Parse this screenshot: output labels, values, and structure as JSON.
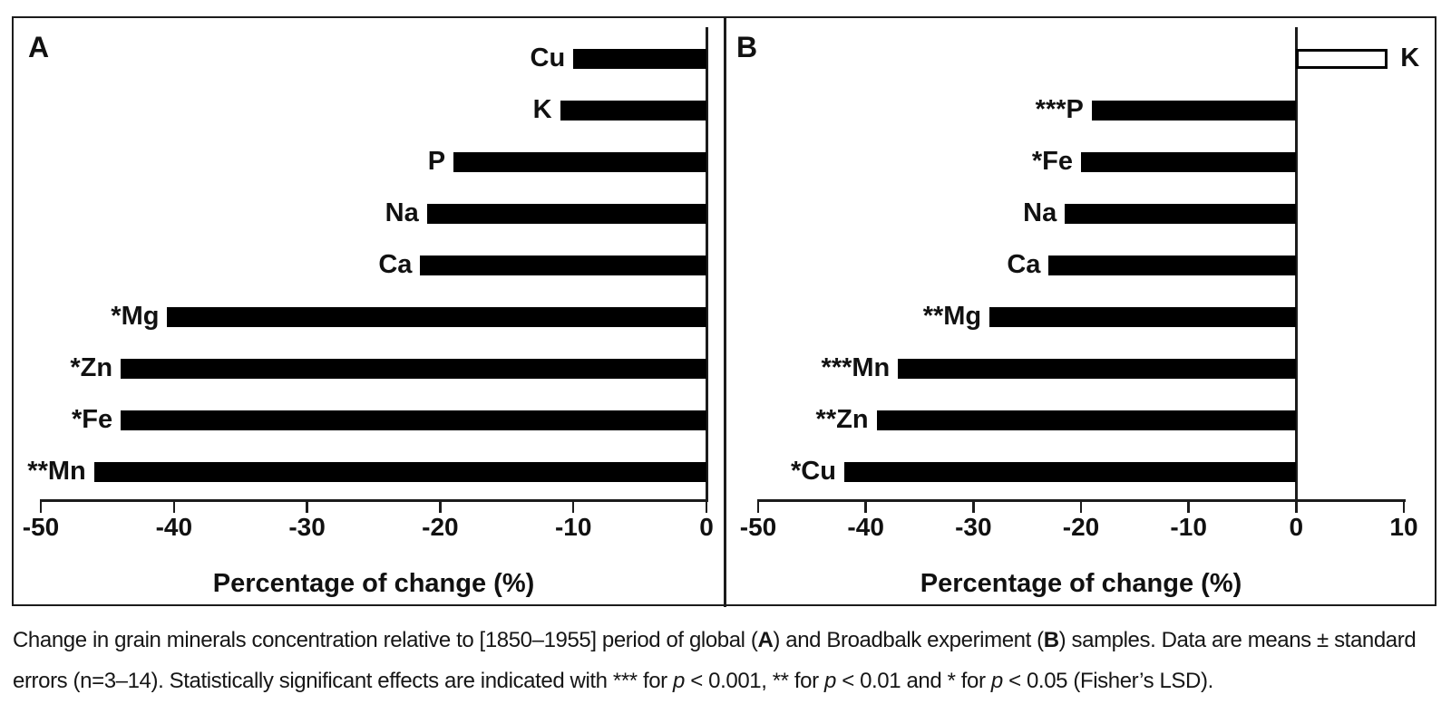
{
  "chart_data": [
    {
      "type": "bar",
      "orientation": "horizontal",
      "title": "A",
      "xlabel": "Percentage of change (%)",
      "xlim": [
        -50,
        0
      ],
      "xticks": [
        -50,
        -40,
        -30,
        -20,
        -10,
        0
      ],
      "grid": false,
      "legend": false,
      "bar_color": "#000000",
      "bars": [
        {
          "label": "Cu",
          "value": -10,
          "open": false
        },
        {
          "label": "K",
          "value": -11,
          "open": false
        },
        {
          "label": "P",
          "value": -19,
          "open": false
        },
        {
          "label": "Na",
          "value": -21,
          "open": false
        },
        {
          "label": "Ca",
          "value": -21.5,
          "open": false
        },
        {
          "label": "*Mg",
          "value": -40.5,
          "open": false
        },
        {
          "label": "*Zn",
          "value": -44,
          "open": false
        },
        {
          "label": "*Fe",
          "value": -44,
          "open": false
        },
        {
          "label": "**Mn",
          "value": -46,
          "open": false
        }
      ]
    },
    {
      "type": "bar",
      "orientation": "horizontal",
      "title": "B",
      "xlabel": "Percentage of change (%)",
      "xlim": [
        -50,
        10
      ],
      "xticks": [
        -50,
        -40,
        -30,
        -20,
        -10,
        0,
        10
      ],
      "grid": false,
      "legend": false,
      "bar_color": "#000000",
      "bars": [
        {
          "label": "K",
          "value": 8.5,
          "open": true
        },
        {
          "label": "***P",
          "value": -19,
          "open": false
        },
        {
          "label": "*Fe",
          "value": -20,
          "open": false
        },
        {
          "label": "Na",
          "value": -21.5,
          "open": false
        },
        {
          "label": "Ca",
          "value": -23,
          "open": false
        },
        {
          "label": "**Mg",
          "value": -28.5,
          "open": false
        },
        {
          "label": "***Mn",
          "value": -37,
          "open": false
        },
        {
          "label": "**Zn",
          "value": -39,
          "open": false
        },
        {
          "label": "*Cu",
          "value": -42,
          "open": false
        }
      ]
    }
  ],
  "caption": {
    "lines": [
      [
        {
          "t": "Change in grain minerals concentration relative to [1850–1955] period of global ("
        },
        {
          "t": "A",
          "s": "b"
        },
        {
          "t": ") and Broadbalk experiment ("
        },
        {
          "t": "B",
          "s": "b"
        },
        {
          "t": ") samples. Data are means ± standard"
        }
      ],
      [
        {
          "t": "errors (n=3–14). Statistically significant effects are indicated with *** for "
        },
        {
          "t": "p",
          "s": "i"
        },
        {
          "t": " < 0.001, ** for "
        },
        {
          "t": "p",
          "s": "i"
        },
        {
          "t": " < 0.01 and * for "
        },
        {
          "t": "p",
          "s": "i"
        },
        {
          "t": " < 0.05 (Fisher’s LSD)."
        }
      ]
    ]
  },
  "colors": {
    "bar_fill": "#000000",
    "open_bar_fill": "#ffffff",
    "axis": "#1c1c1c",
    "text": "#111111",
    "background": "#ffffff"
  }
}
